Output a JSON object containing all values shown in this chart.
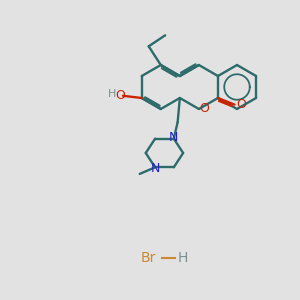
{
  "bg_color": "#e2e2e2",
  "bond_color": "#2d6b6b",
  "o_color": "#cc2200",
  "n_color": "#2222cc",
  "h_color": "#7a9090",
  "hbr_color": "#cc8833",
  "lw": 1.7,
  "BL": 22
}
